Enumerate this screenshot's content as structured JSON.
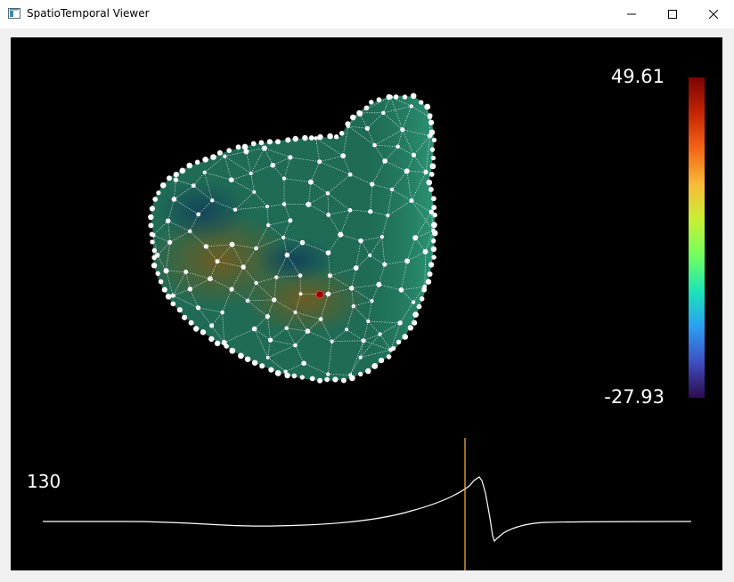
{
  "window": {
    "title": "SpatioTemporal Viewer",
    "controls": [
      "minimize",
      "maximize",
      "close"
    ]
  },
  "colorbar": {
    "max_label": "49.61",
    "min_label": "-27.93",
    "colormap": [
      "#2d0b4e",
      "#3f4fc2",
      "#2a9ff2",
      "#1be5b7",
      "#72fe5e",
      "#c8ef34",
      "#f9ba38",
      "#f46516",
      "#c42503",
      "#7a0403"
    ]
  },
  "signal": {
    "frame_label": "130",
    "trace_color": "#ffffff",
    "cursor_color": "#ffb84d"
  },
  "mesh": {
    "surface_color": "#1f6b55",
    "node_color": "#ffffff",
    "selected_node_color": "#8b0000"
  }
}
